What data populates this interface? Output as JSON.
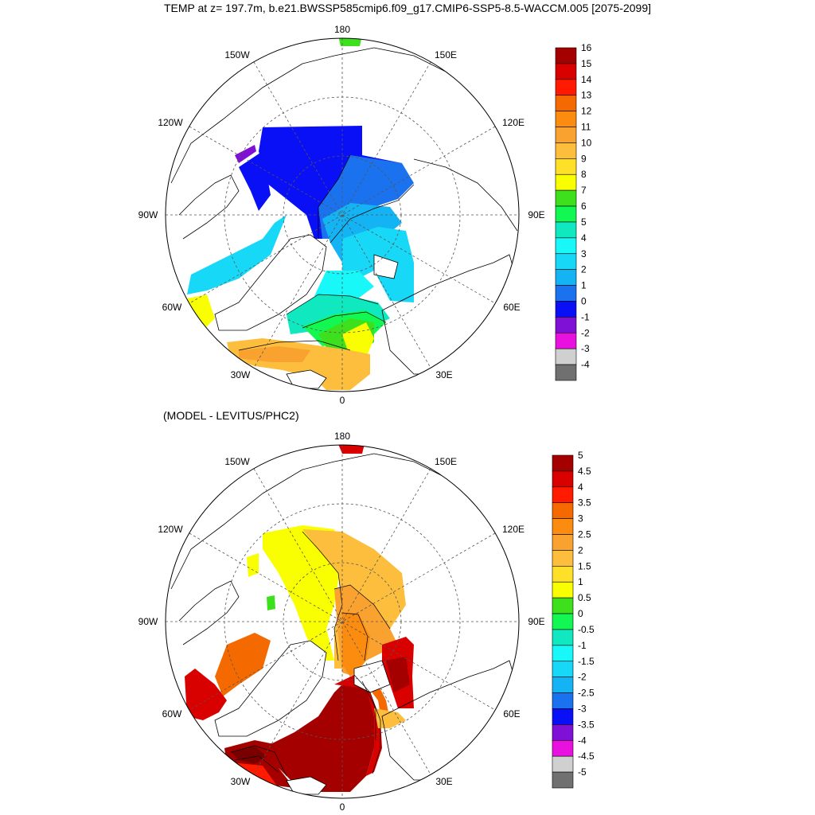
{
  "title": "TEMP at z= 197.7m, b.e21.BWSSP585cmip6.f09_g17.CMIP6-SSP5-8.5-WACCM.005 [2075-2099]",
  "subtitle": "(MODEL - LEVITUS/PHC2)",
  "lon_labels": [
    "180",
    "150E",
    "120E",
    "90E",
    "60E",
    "30E",
    "0",
    "30W",
    "60W",
    "90W",
    "120W",
    "150W"
  ],
  "top_colorbar": {
    "labels": [
      "16",
      "15",
      "14",
      "13",
      "12",
      "11",
      "10",
      "9",
      "8",
      "7",
      "6",
      "5",
      "4",
      "3",
      "2",
      "1",
      "0",
      "-1",
      "-2",
      "-3",
      "-4"
    ],
    "colors": [
      "#a50000",
      "#d90000",
      "#ff1a00",
      "#f56a00",
      "#fb8c10",
      "#f9a230",
      "#fcbe3c",
      "#ffe028",
      "#f9ff00",
      "#3ee01e",
      "#13f752",
      "#10e8c0",
      "#18f8f8",
      "#18d8f8",
      "#14b4f4",
      "#1a72ee",
      "#0a10f5",
      "#7f10d6",
      "#e911e0",
      "#d0d0d0",
      "#707070"
    ]
  },
  "bottom_colorbar": {
    "labels": [
      "5",
      "4.5",
      "4",
      "3.5",
      "3",
      "2.5",
      "2",
      "1.5",
      "1",
      "0.5",
      "0",
      "-0.5",
      "-1",
      "-1.5",
      "-2",
      "-2.5",
      "-3",
      "-3.5",
      "-4",
      "-4.5",
      "-5"
    ],
    "colors": [
      "#a50000",
      "#d90000",
      "#ff1a00",
      "#f56a00",
      "#fb8c10",
      "#f9a230",
      "#fcbe3c",
      "#ffe028",
      "#f9ff00",
      "#3ee01e",
      "#13f752",
      "#10e8c0",
      "#18f8f8",
      "#18d8f8",
      "#14b4f4",
      "#1a72ee",
      "#0a10f5",
      "#7f10d6",
      "#e911e0",
      "#d0d0d0",
      "#707070"
    ]
  }
}
